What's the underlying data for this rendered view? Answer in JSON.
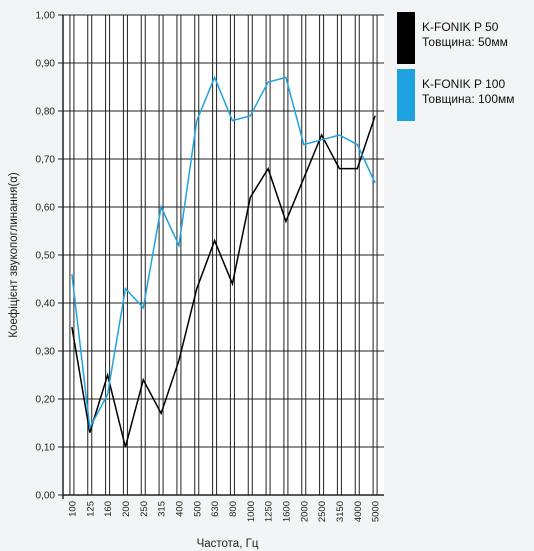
{
  "chart_data": {
    "type": "line",
    "xlabel": "Частота, Гц",
    "ylabel": "Коефіцієнт звукопоглинання(α)",
    "categories": [
      "100",
      "125",
      "160",
      "200",
      "250",
      "315",
      "400",
      "500",
      "630",
      "800",
      "1000",
      "1250",
      "1600",
      "2000",
      "2500",
      "3150",
      "4000",
      "5000"
    ],
    "y_ticks": [
      "0,00",
      "0,10",
      "0,20",
      "0,30",
      "0,40",
      "0,50",
      "0,60",
      "0,70",
      "0,80",
      "0,90",
      "1,00"
    ],
    "ylim": [
      0,
      1
    ],
    "grid": true,
    "legend_position": "right",
    "series": [
      {
        "name": "K-FONIK P 50",
        "subtitle": "Товщина: 50мм",
        "color": "#000000",
        "values": [
          0.35,
          0.13,
          0.25,
          0.1,
          0.24,
          0.17,
          0.28,
          0.43,
          0.53,
          0.44,
          0.62,
          0.68,
          0.57,
          0.66,
          0.75,
          0.68,
          0.68,
          0.79
        ]
      },
      {
        "name": "K-FONIK P 100",
        "subtitle": "Товщина: 100мм",
        "color": "#1fa3e0",
        "values": [
          0.46,
          0.14,
          0.21,
          0.43,
          0.39,
          0.6,
          0.52,
          0.78,
          0.87,
          0.78,
          0.79,
          0.86,
          0.87,
          0.73,
          0.74,
          0.75,
          0.73,
          0.65
        ]
      }
    ]
  }
}
